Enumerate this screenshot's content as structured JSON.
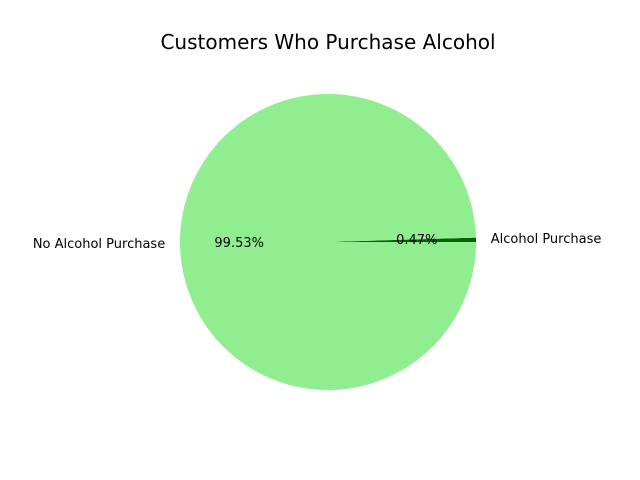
{
  "chart_data": {
    "type": "pie",
    "title": "Customers Who Purchase Alcohol",
    "slices": [
      {
        "label": "Alcohol Purchase",
        "value": 0.47,
        "pct_label": "0.47%",
        "color": "#006400"
      },
      {
        "label": "No Alcohol Purchase",
        "value": 99.53,
        "pct_label": "99.53%",
        "color": "#90ee90"
      }
    ],
    "start_angle_deg": 0,
    "direction": "counterclockwise"
  }
}
